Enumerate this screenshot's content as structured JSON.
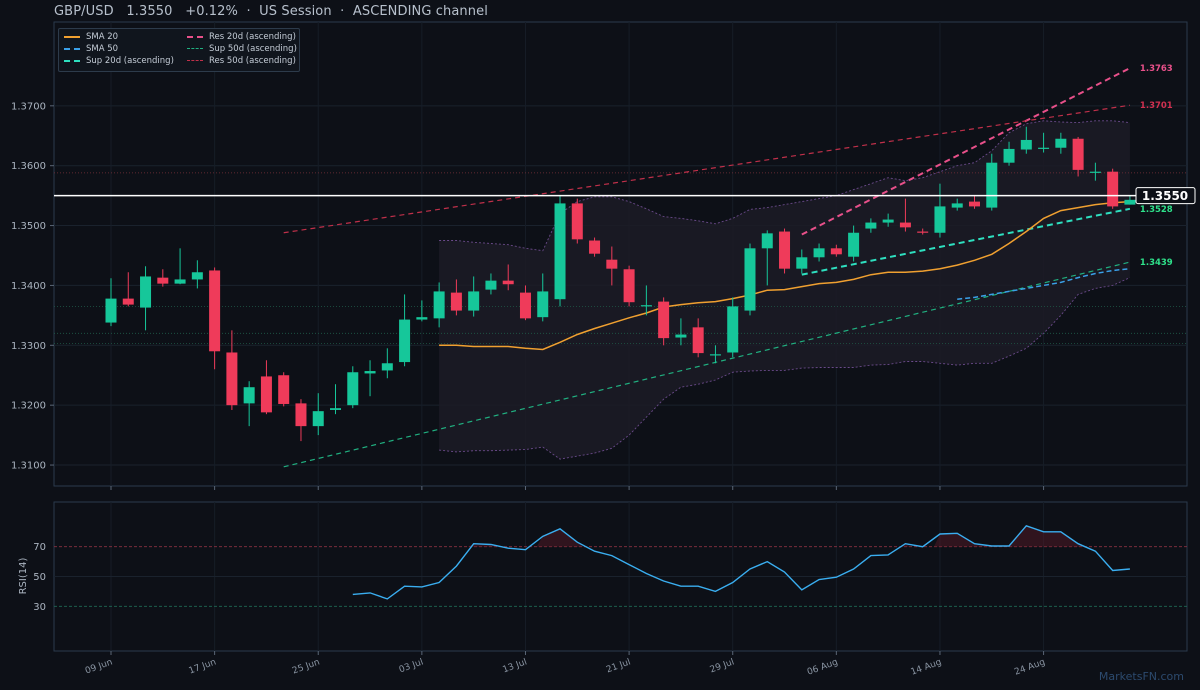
{
  "header": {
    "symbol": "GBP/USD",
    "price": "1.3550",
    "change": "+0.12%",
    "session": "US Session",
    "channel": "ASCENDING channel"
  },
  "legend": {
    "items": [
      {
        "label": "SMA 20",
        "color": "#f0a030",
        "style": "solid"
      },
      {
        "label": "SMA 50",
        "color": "#3aa0e8",
        "style": "dashed"
      },
      {
        "label": "Sup 20d (ascending)",
        "color": "#2ee0c0",
        "style": "dashed"
      },
      {
        "label": "Res 20d (ascending)",
        "color": "#e8508a",
        "style": "dashed"
      },
      {
        "label": "Sup 50d (ascending)",
        "color": "#20b080",
        "style": "dashed"
      },
      {
        "label": "Res 50d (ascending)",
        "color": "#c0304a",
        "style": "dashed"
      }
    ]
  },
  "watermark": "MarketsFN.com",
  "chart_data": {
    "type": "candlestick",
    "price_yticks": [
      "1.3100",
      "1.3200",
      "1.3300",
      "1.3400",
      "1.3500",
      "1.3600",
      "1.3700"
    ],
    "ylim": [
      1.3065,
      1.384
    ],
    "rsi_label": "RSI(14)",
    "rsi_yticks": [
      "30",
      "50",
      "70"
    ],
    "rsi_ylim": [
      0,
      100
    ],
    "x_ticks": [
      {
        "label": "09 Jun",
        "i": 0
      },
      {
        "label": "17 Jun",
        "i": 6
      },
      {
        "label": "25 Jun",
        "i": 12
      },
      {
        "label": "03 Jul",
        "i": 18
      },
      {
        "label": "13 Jul",
        "i": 24
      },
      {
        "label": "21 Jul",
        "i": 30
      },
      {
        "label": "29 Jul",
        "i": 36
      },
      {
        "label": "06 Aug",
        "i": 42
      },
      {
        "label": "14 Aug",
        "i": 48
      },
      {
        "label": "24 Aug",
        "i": 54
      }
    ],
    "candles": [
      [
        1.3338,
        1.3378,
        1.3332,
        1.3412
      ],
      [
        1.3378,
        1.3368,
        1.3365,
        1.3422
      ],
      [
        1.3363,
        1.3415,
        1.3325,
        1.3432
      ],
      [
        1.3413,
        1.3403,
        1.3398,
        1.3427
      ],
      [
        1.3403,
        1.341,
        1.3402,
        1.3462
      ],
      [
        1.341,
        1.3422,
        1.3395,
        1.3442
      ],
      [
        1.3425,
        1.329,
        1.326,
        1.343
      ],
      [
        1.3288,
        1.32,
        1.3192,
        1.3325
      ],
      [
        1.3203,
        1.323,
        1.3165,
        1.324
      ],
      [
        1.3248,
        1.3188,
        1.3185,
        1.3275
      ],
      [
        1.325,
        1.3202,
        1.3198,
        1.3255
      ],
      [
        1.3203,
        1.3165,
        1.314,
        1.321
      ],
      [
        1.3165,
        1.319,
        1.315,
        1.322
      ],
      [
        1.3192,
        1.3195,
        1.3185,
        1.3235
      ],
      [
        1.32,
        1.3255,
        1.3195,
        1.3265
      ],
      [
        1.3253,
        1.3257,
        1.3215,
        1.3275
      ],
      [
        1.3258,
        1.327,
        1.3245,
        1.3295
      ],
      [
        1.3272,
        1.3343,
        1.3265,
        1.3385
      ],
      [
        1.3343,
        1.3347,
        1.334,
        1.3375
      ],
      [
        1.3345,
        1.339,
        1.333,
        1.3405
      ],
      [
        1.3388,
        1.3358,
        1.335,
        1.341
      ],
      [
        1.3358,
        1.339,
        1.3348,
        1.3415
      ],
      [
        1.3393,
        1.3408,
        1.3385,
        1.342
      ],
      [
        1.3408,
        1.3402,
        1.3392,
        1.3435
      ],
      [
        1.3388,
        1.3345,
        1.3342,
        1.34
      ],
      [
        1.3347,
        1.339,
        1.334,
        1.342
      ],
      [
        1.3377,
        1.3537,
        1.3365,
        1.355
      ],
      [
        1.3537,
        1.3477,
        1.347,
        1.3545
      ],
      [
        1.3475,
        1.3453,
        1.3448,
        1.348
      ],
      [
        1.3443,
        1.3428,
        1.34,
        1.3465
      ],
      [
        1.3427,
        1.3372,
        1.3365,
        1.3433
      ],
      [
        1.3367,
        1.3367,
        1.335,
        1.34
      ],
      [
        1.3373,
        1.3312,
        1.33,
        1.338
      ],
      [
        1.3313,
        1.3318,
        1.33,
        1.3345
      ],
      [
        1.333,
        1.3287,
        1.328,
        1.3345
      ],
      [
        1.3285,
        1.3285,
        1.327,
        1.33
      ],
      [
        1.3288,
        1.3365,
        1.328,
        1.338
      ],
      [
        1.3358,
        1.3462,
        1.335,
        1.347
      ],
      [
        1.3462,
        1.3487,
        1.34,
        1.3492
      ],
      [
        1.349,
        1.3428,
        1.342,
        1.3495
      ],
      [
        1.3428,
        1.3447,
        1.342,
        1.346
      ],
      [
        1.3447,
        1.3462,
        1.344,
        1.347
      ],
      [
        1.3462,
        1.3452,
        1.3448,
        1.3468
      ],
      [
        1.3448,
        1.3488,
        1.344,
        1.35
      ],
      [
        1.3495,
        1.3505,
        1.3488,
        1.3512
      ],
      [
        1.3505,
        1.351,
        1.3498,
        1.352
      ],
      [
        1.3505,
        1.3497,
        1.349,
        1.3545
      ],
      [
        1.349,
        1.3488,
        1.3485,
        1.3495
      ],
      [
        1.3488,
        1.3532,
        1.348,
        1.357
      ],
      [
        1.353,
        1.3537,
        1.3525,
        1.3545
      ],
      [
        1.354,
        1.3532,
        1.3528,
        1.355
      ],
      [
        1.353,
        1.3605,
        1.3525,
        1.362
      ],
      [
        1.3605,
        1.3628,
        1.36,
        1.364
      ],
      [
        1.3627,
        1.3643,
        1.362,
        1.3665
      ],
      [
        1.3628,
        1.363,
        1.3622,
        1.3655
      ],
      [
        1.363,
        1.3645,
        1.362,
        1.3655
      ],
      [
        1.3645,
        1.3593,
        1.3582,
        1.3648
      ],
      [
        1.3588,
        1.359,
        1.3575,
        1.3605
      ],
      [
        1.359,
        1.3532,
        1.3528,
        1.3595
      ],
      [
        1.3535,
        1.3543,
        1.3535,
        1.355
      ]
    ],
    "sma20": [
      null,
      null,
      null,
      null,
      null,
      null,
      null,
      null,
      null,
      null,
      null,
      null,
      null,
      null,
      null,
      null,
      null,
      null,
      null,
      1.33,
      1.33,
      1.3298,
      1.3298,
      1.3298,
      1.3295,
      1.3293,
      1.3305,
      1.3318,
      1.3328,
      1.3337,
      1.3346,
      1.3354,
      1.3364,
      1.3368,
      1.3371,
      1.3373,
      1.3378,
      1.3384,
      1.3392,
      1.3393,
      1.3398,
      1.3403,
      1.3405,
      1.341,
      1.3418,
      1.3422,
      1.3422,
      1.3424,
      1.3428,
      1.3434,
      1.3442,
      1.3452,
      1.347,
      1.349,
      1.3512,
      1.3525,
      1.353,
      1.3535,
      1.3538,
      1.354
    ],
    "sma50": [
      null,
      null,
      null,
      null,
      null,
      null,
      null,
      null,
      null,
      null,
      null,
      null,
      null,
      null,
      null,
      null,
      null,
      null,
      null,
      null,
      null,
      null,
      null,
      null,
      null,
      null,
      null,
      null,
      null,
      null,
      null,
      null,
      null,
      null,
      null,
      null,
      null,
      null,
      null,
      null,
      null,
      null,
      null,
      null,
      null,
      null,
      null,
      null,
      null,
      1.3377,
      1.338,
      1.3385,
      1.339,
      1.3395,
      1.34,
      1.3405,
      1.3413,
      1.342,
      1.3425,
      1.3428
    ],
    "bb_upper": [
      null,
      null,
      null,
      null,
      null,
      null,
      null,
      null,
      null,
      null,
      null,
      null,
      null,
      null,
      null,
      null,
      null,
      null,
      null,
      1.3475,
      1.3475,
      1.3472,
      1.347,
      1.3468,
      1.3462,
      1.3458,
      1.352,
      1.354,
      1.3548,
      1.3548,
      1.354,
      1.3528,
      1.3515,
      1.3512,
      1.3508,
      1.3503,
      1.3512,
      1.3527,
      1.353,
      1.3535,
      1.354,
      1.3545,
      1.355,
      1.356,
      1.357,
      1.358,
      1.3575,
      1.358,
      1.359,
      1.36,
      1.3605,
      1.3625,
      1.3655,
      1.367,
      1.3675,
      1.3673,
      1.3672,
      1.3675,
      1.3675,
      1.3672
    ],
    "bb_lower": [
      null,
      null,
      null,
      null,
      null,
      null,
      null,
      null,
      null,
      null,
      null,
      null,
      null,
      null,
      null,
      null,
      null,
      null,
      null,
      1.3125,
      1.3122,
      1.3124,
      1.3124,
      1.3125,
      1.3126,
      1.313,
      1.311,
      1.3115,
      1.312,
      1.3128,
      1.315,
      1.318,
      1.321,
      1.323,
      1.3235,
      1.3242,
      1.3255,
      1.3257,
      1.3258,
      1.3258,
      1.3262,
      1.3263,
      1.3263,
      1.3263,
      1.3267,
      1.3268,
      1.3273,
      1.3273,
      1.327,
      1.3267,
      1.327,
      1.327,
      1.3282,
      1.3295,
      1.332,
      1.335,
      1.3385,
      1.3395,
      1.34,
      1.3413
    ],
    "rsi": [
      null,
      null,
      null,
      null,
      null,
      null,
      null,
      null,
      null,
      null,
      null,
      null,
      null,
      null,
      38,
      39,
      35,
      43.5,
      43,
      46,
      57,
      72,
      71.5,
      69,
      68,
      77,
      82,
      73,
      67,
      64,
      58,
      52,
      47,
      43.5,
      43.5,
      40,
      46,
      55,
      60,
      53,
      41,
      48,
      49.5,
      55,
      64,
      64.5,
      72,
      70,
      78.5,
      79,
      72,
      70.5,
      70.5,
      84,
      80,
      80,
      72,
      67,
      54,
      55
    ],
    "lines": [
      {
        "name": "Res 20d (ascending)",
        "i0": 40,
        "v0": 1.3485,
        "i1": 59,
        "v1": 1.3763,
        "label": "1.3763"
      },
      {
        "name": "Res 50d (ascending)",
        "i0": 10,
        "v0": 1.3488,
        "i1": 59,
        "v1": 1.3701,
        "label": "1.3701"
      },
      {
        "name": "Sup 20d (ascending)",
        "i0": 40,
        "v0": 1.3418,
        "i1": 59,
        "v1": 1.3528,
        "label": "1.3528"
      },
      {
        "name": "Sup 50d (ascending)",
        "i0": 10,
        "v0": 1.3097,
        "i1": 59,
        "v1": 1.3439,
        "label": "1.3439"
      }
    ],
    "current_price": 1.355,
    "current_label": "1.3550",
    "hlevels": [
      1.3588,
      1.3365,
      1.332,
      1.3303
    ]
  }
}
